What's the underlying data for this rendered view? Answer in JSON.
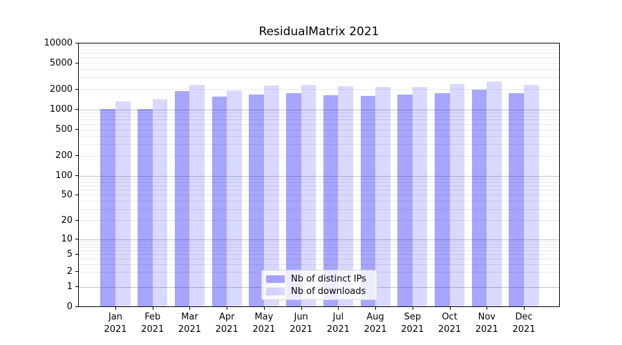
{
  "chart_data": {
    "type": "bar",
    "title": "ResidualMatrix 2021",
    "categories": [
      "Jan 2021",
      "Feb 2021",
      "Mar 2021",
      "Apr 2021",
      "May 2021",
      "Jun 2021",
      "Jul 2021",
      "Aug 2021",
      "Sep 2021",
      "Oct 2021",
      "Nov 2021",
      "Dec 2021"
    ],
    "series": [
      {
        "name": "Nb of distinct IPs",
        "color": "rgba(0,0,255,0.35)",
        "values": [
          1020,
          1020,
          1870,
          1540,
          1670,
          1770,
          1620,
          1580,
          1690,
          1760,
          1980,
          1740
        ]
      },
      {
        "name": "Nb of downloads",
        "color": "rgba(0,0,255,0.15)",
        "values": [
          1310,
          1400,
          2360,
          1950,
          2290,
          2320,
          2220,
          2150,
          2160,
          2420,
          2620,
          2330
        ]
      }
    ],
    "y_axis": {
      "scale": "symlog",
      "tick_values": [
        0,
        1,
        2,
        5,
        10,
        20,
        50,
        100,
        200,
        500,
        1000,
        2000,
        5000,
        10000
      ],
      "tick_labels": [
        "0",
        "1",
        "2",
        "5",
        "10",
        "20",
        "50",
        "100",
        "200",
        "500",
        "1000",
        "2000",
        "5000",
        "10000"
      ],
      "range": [
        0,
        10000
      ]
    },
    "grid": {
      "major": "on",
      "minor": "on",
      "major_color": "#c3c3c3",
      "minor_color": "#e9e9e9"
    },
    "legend": {
      "position": "lower center",
      "entries": [
        "Nb of distinct IPs",
        "Nb of downloads"
      ]
    }
  }
}
